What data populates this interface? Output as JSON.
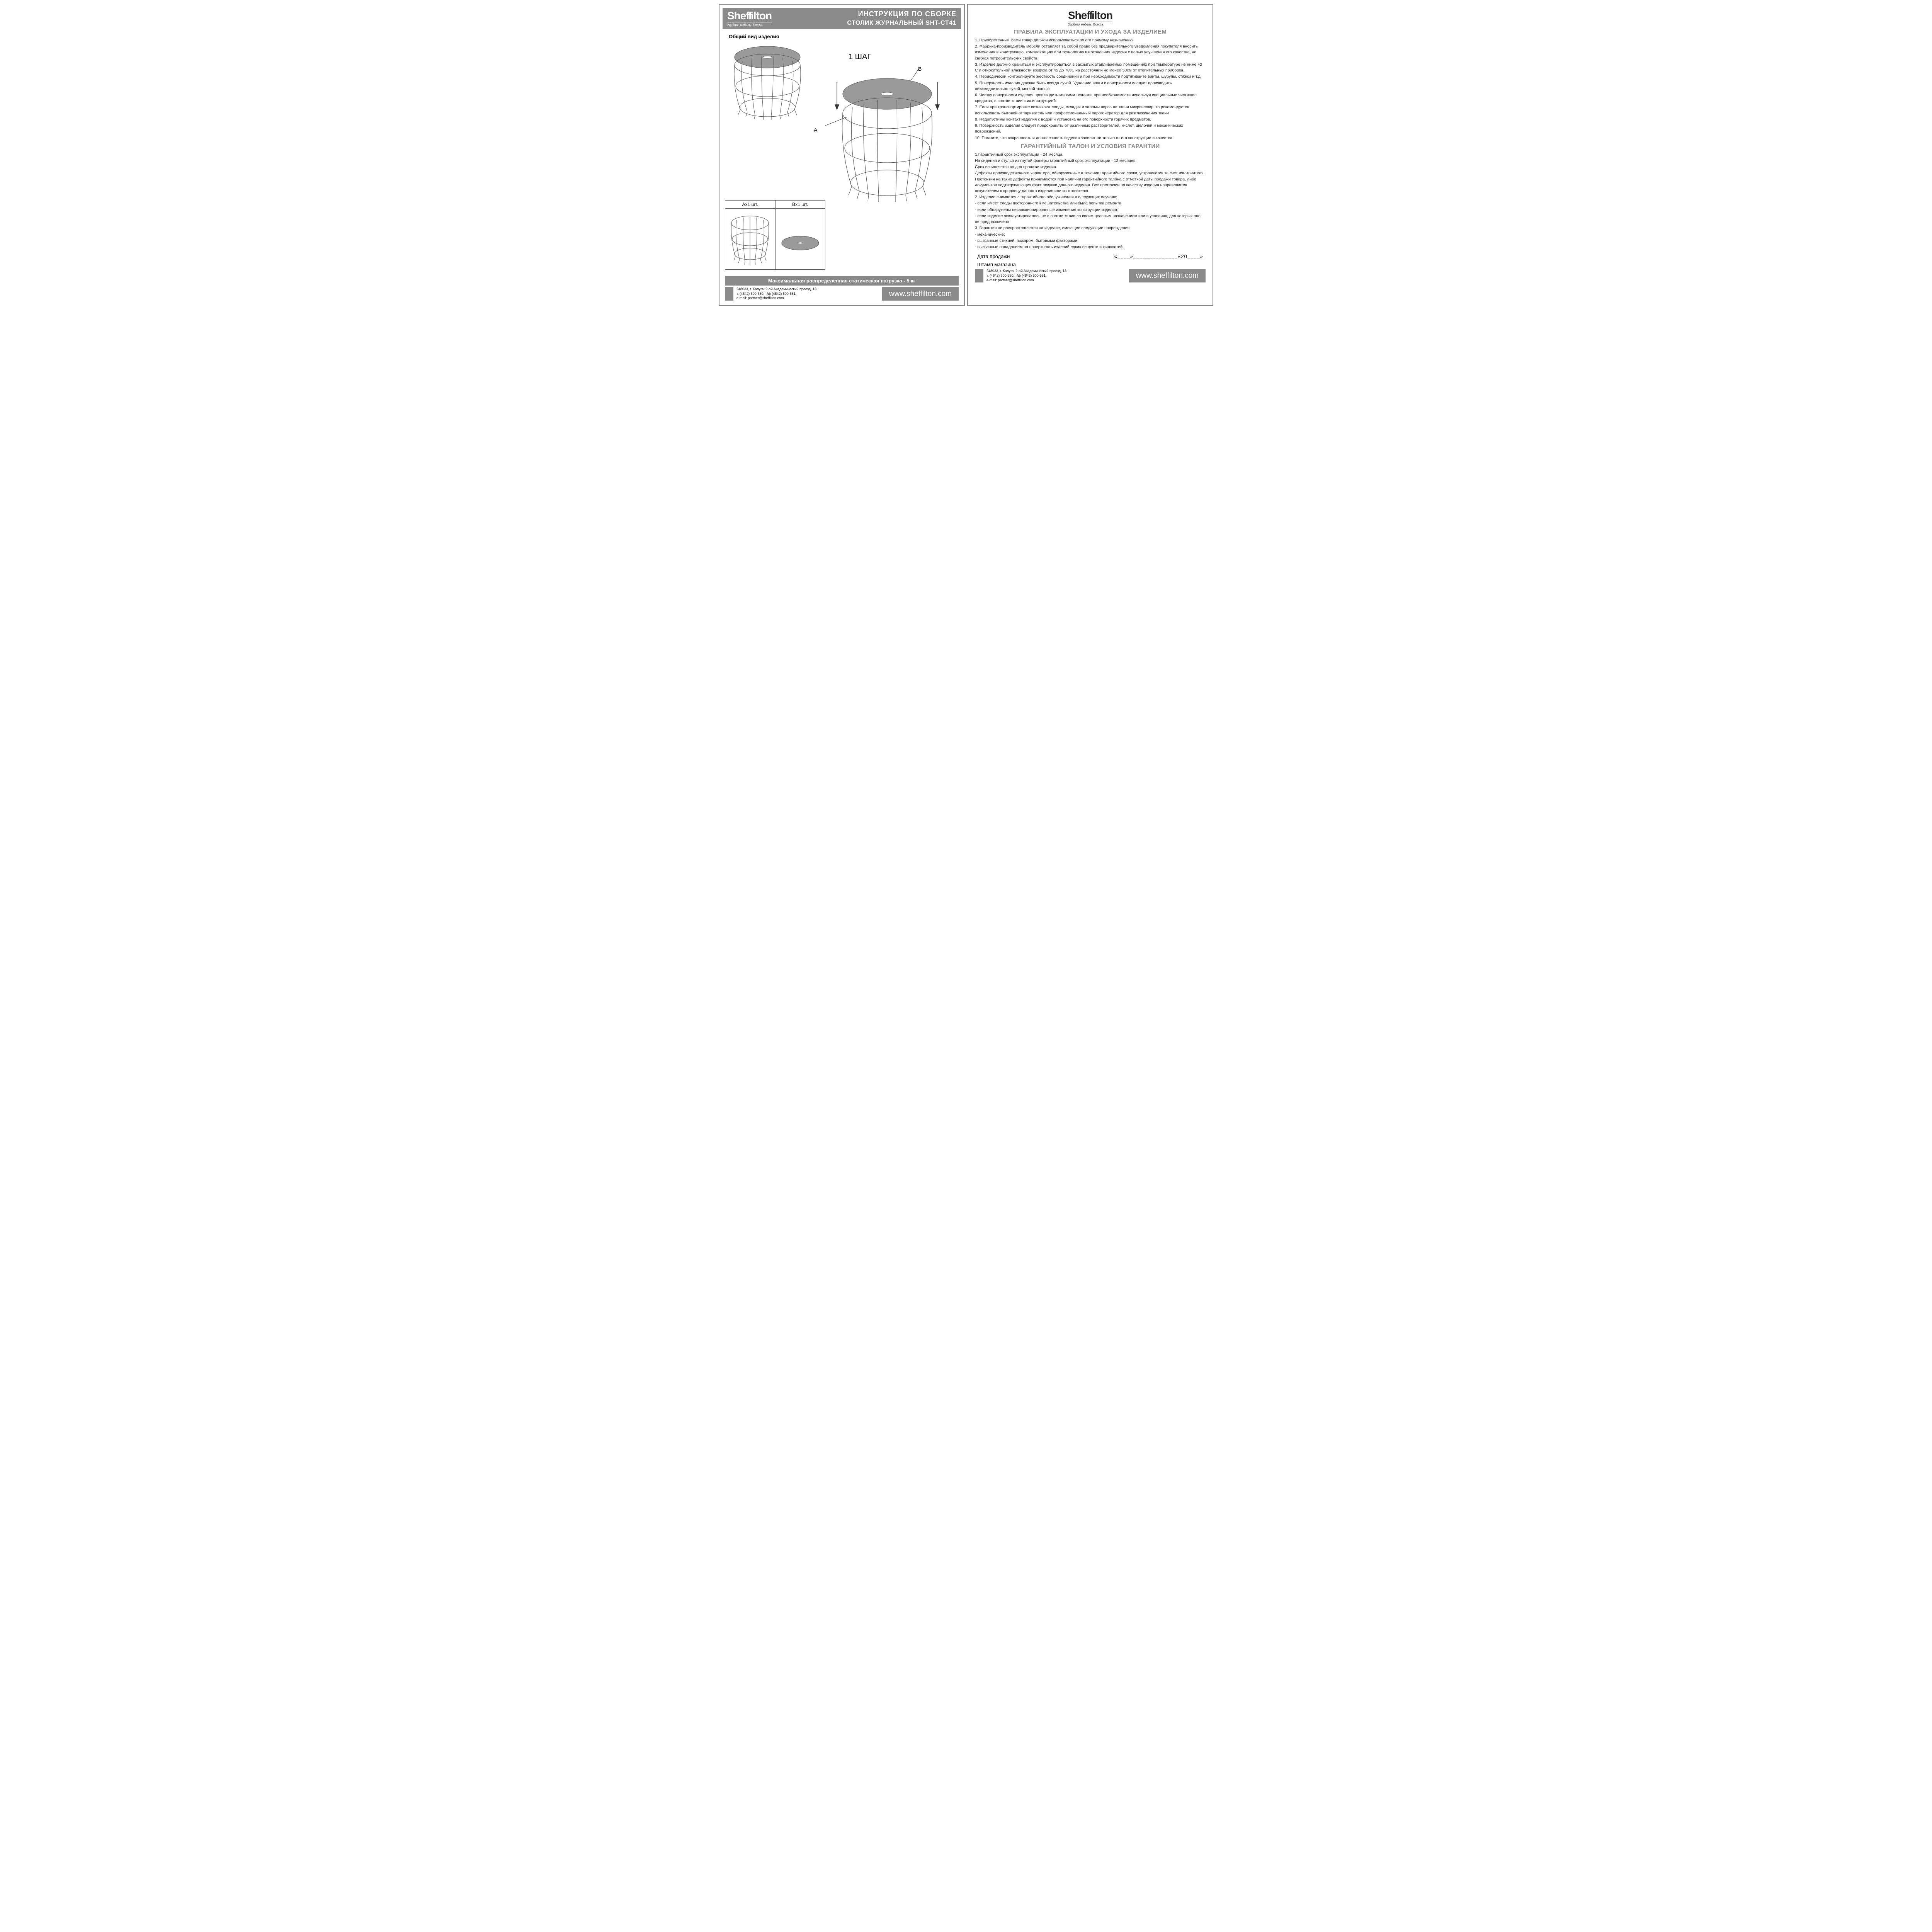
{
  "colors": {
    "grey": "#8a8a8a",
    "text": "#222222",
    "border": "#888888",
    "line": "#555555",
    "white": "#ffffff",
    "disc": "#9a9a9a"
  },
  "logo": {
    "brand": "Sheffilton",
    "tagline": "Удобная мебель. Всегда."
  },
  "left": {
    "title1": "ИНСТРУКЦИЯ ПО СБОРКЕ",
    "title2": "СТОЛИК ЖУРНАЛЬНЫЙ SHT-CT41",
    "general_view": "Общий вид изделия",
    "step": "1 ШАГ",
    "callout_a": "A",
    "callout_b": "B",
    "parts": {
      "a": "Aх1 шт.",
      "b": "Bх1 шт."
    },
    "load": "Максимальная распределенная статическая нагрузка - 5 кг"
  },
  "right": {
    "rules_title": "ПРАВИЛА ЭКСПЛУАТАЦИИ И УХОДА ЗА ИЗДЕЛИЕМ",
    "rules": [
      "1. Приобретенный Вами товар должен использоваться по его прямому назначению.",
      "2. Фабрика-производитель мебели оставляет за собой право без предварительного уведомления покупателя вносить изменения в конструкцию, комплектацию или технологию изготовления изделия с целью улучшения его качества, не снижая потребительских свойств.",
      "3. Изделие должно храниться и эксплуатироваться в закрытых отапливаемых помещениях при температуре не ниже +2 С и относительной влажности воздуха от 45 до 70%, на расстоянии не менее 50см от отопительных приборов.",
      "4. Периодически контролируйте жесткость соединений и при необходимости подтягивайте винты, шурупы, стяжки и т.д.",
      "5. Поверхность изделия должна быть всегда сухой. Удаление влаги с поверхности следует производить незамедлительно сухой, мягкой тканью.",
      "6. Чистку поверхности изделия производить мягкими тканями, при необходимости используя специальные чистящие средства, в соответствии с их инструкцией.",
      "7. Если при транспортировке возникают следы, складки  и заломы ворса на ткани микровелюр, то рекомендуется использовать бытовой отпариватель или профессиональный парогенератор для разглаживания ткани",
      "8. Недопустимы контакт изделия с водой и установка на его поверхности горячих предметов.",
      "9. Поверхность изделия следует  предохранять от различных растворителей, кислот, щелочей и механических повреждений.",
      "10. Помните, что сохранность и долговечность изделия зависит не только от его конструкции и качества"
    ],
    "warranty_title": "ГАРАНТИЙНЫЙ ТАЛОН И УСЛОВИЯ ГАРАНТИИ",
    "warranty": [
      "1.Гарантийный срок эксплуатации - 24 месяца.",
      "На сидения и стулья из гнутой фанеры гарантийный срок эксплуатации - 12 месяцев.",
      "Срок исчисляется со дня продажи изделия.",
      "Дефекты производственного характера, обнаруженные в течении гарантийного срока, устраняются за счет изготовителя. Претензии на такие дефекты принимаются при наличии гарантийного талона с отметкой даты продажи товара, либо документов подтверждающих факт покупки данного изделия. Все претензии по качеству изделия направляются покупателем к продавцу данного изделия или изготовителю.",
      "2. Изделие снимается с гарантийного обслуживания в следующих случаях:",
      "- если имеет следы постороннего вмешательства или была попытка ремонта;",
      "- если обнаружены несанкционированные изменения конструкции изделия;",
      "- если изделие эксплуатировалось не в соответствии со своим целевым назначением или в условиях, для которых оно не предназначено",
      "3. Гарантия не распространяется на изделие, имеющее следующие повреждения:",
      "- механические;",
      "- вызванные стихией, пожаром, бытовыми факторами;",
      "- вызванные попаданием на поверхность изделий едких веществ и жидкостей."
    ],
    "sale_date_label": "Дата продажи",
    "sale_date_blank": "«____»______________«20____»",
    "stamp_label": "Штамп магазина"
  },
  "footer": {
    "addr1": "248033, г. Калуга, 2-ой Академический проезд, 13,",
    "addr2": "т. (4842) 500-580, т/ф (4842) 500-581,",
    "addr3": "e-mail: partner@sheffilton.com",
    "url": "www.sheffilton.com"
  }
}
